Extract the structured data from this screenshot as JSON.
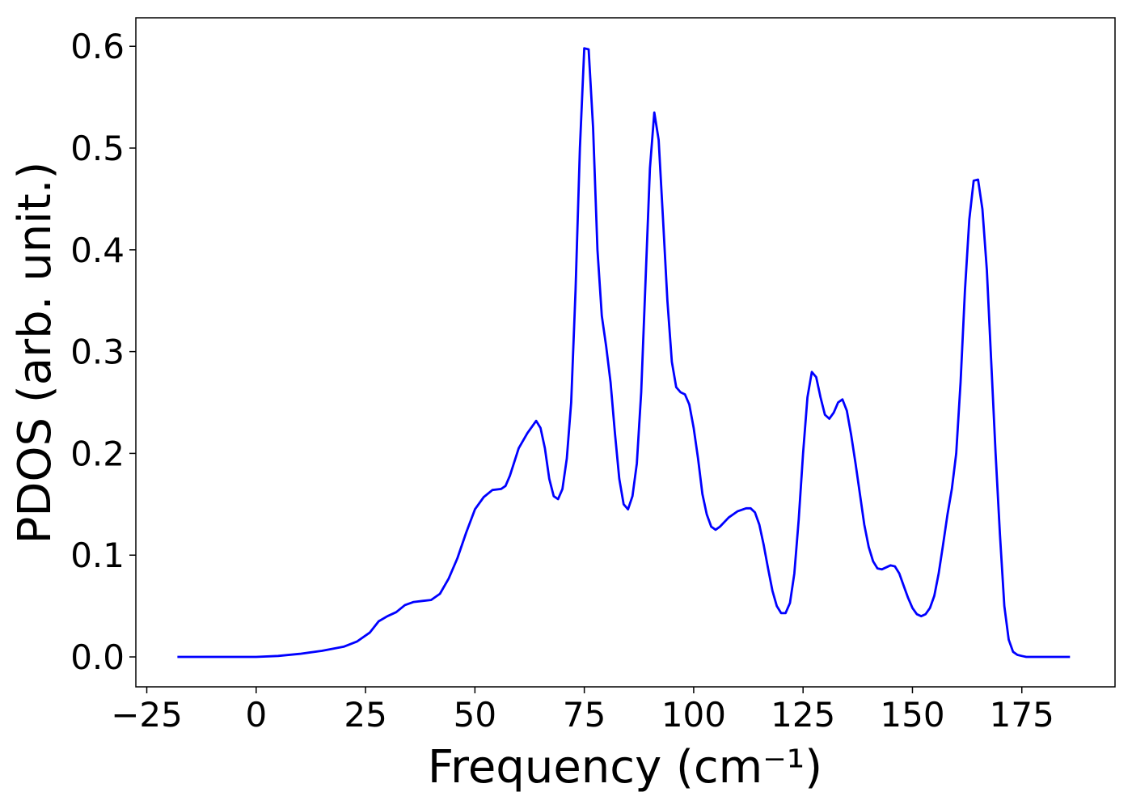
{
  "chart_data": {
    "type": "line",
    "xlabel": "Frequency (cm⁻¹)",
    "ylabel": "PDOS (arb. unit.)",
    "xlim": [
      -27.5,
      196.3
    ],
    "ylim": [
      -0.0294,
      0.628
    ],
    "xticks": [
      {
        "value": -25,
        "label": "−25"
      },
      0,
      25,
      50,
      75,
      100,
      125,
      150,
      175
    ],
    "yticks": [
      {
        "value": 0,
        "label": "0.0"
      },
      0.1,
      0.2,
      0.3,
      0.4,
      0.5,
      0.6
    ],
    "grid": false,
    "series": [
      {
        "name": "PDOS",
        "color": "#0000ff",
        "x": [
          -18,
          0,
          5,
          10,
          15,
          20,
          23,
          26,
          28,
          30,
          32,
          34,
          36,
          38,
          40,
          42,
          44,
          46,
          48,
          50,
          52,
          54,
          56,
          57,
          58,
          60,
          62,
          64,
          65,
          66,
          67,
          68,
          69,
          70,
          71,
          72,
          73,
          74,
          75,
          76,
          77,
          78,
          79,
          80,
          81,
          82,
          83,
          84,
          85,
          86,
          87,
          88,
          89,
          90,
          91,
          92,
          93,
          94,
          95,
          96,
          97,
          98,
          99,
          100,
          101,
          102,
          103,
          104,
          105,
          106,
          108,
          110,
          112,
          113,
          114,
          115,
          116,
          117,
          118,
          119,
          120,
          121,
          122,
          123,
          124,
          125,
          126,
          127,
          128,
          129,
          130,
          131,
          132,
          133,
          134,
          135,
          136,
          137,
          138,
          139,
          140,
          141,
          142,
          143,
          144,
          145,
          146,
          147,
          148,
          149,
          150,
          151,
          152,
          153,
          154,
          155,
          156,
          157,
          158,
          159,
          160,
          161,
          162,
          163,
          164,
          165,
          166,
          167,
          168,
          169,
          170,
          171,
          172,
          173,
          174,
          175,
          176,
          186
        ],
        "values": [
          0,
          0,
          0.001,
          0.003,
          0.006,
          0.01,
          0.015,
          0.024,
          0.035,
          0.04,
          0.044,
          0.051,
          0.054,
          0.055,
          0.056,
          0.062,
          0.077,
          0.097,
          0.122,
          0.145,
          0.157,
          0.164,
          0.165,
          0.168,
          0.178,
          0.205,
          0.22,
          0.232,
          0.225,
          0.205,
          0.175,
          0.158,
          0.155,
          0.165,
          0.195,
          0.25,
          0.36,
          0.5,
          0.598,
          0.597,
          0.52,
          0.4,
          0.335,
          0.305,
          0.27,
          0.22,
          0.175,
          0.15,
          0.145,
          0.158,
          0.19,
          0.26,
          0.37,
          0.48,
          0.535,
          0.508,
          0.43,
          0.35,
          0.29,
          0.265,
          0.26,
          0.258,
          0.248,
          0.225,
          0.195,
          0.16,
          0.14,
          0.128,
          0.125,
          0.128,
          0.137,
          0.143,
          0.146,
          0.146,
          0.142,
          0.13,
          0.11,
          0.087,
          0.065,
          0.05,
          0.043,
          0.043,
          0.053,
          0.082,
          0.135,
          0.2,
          0.255,
          0.28,
          0.275,
          0.255,
          0.238,
          0.234,
          0.24,
          0.25,
          0.253,
          0.242,
          0.218,
          0.19,
          0.16,
          0.13,
          0.108,
          0.094,
          0.087,
          0.086,
          0.088,
          0.09,
          0.089,
          0.082,
          0.07,
          0.058,
          0.048,
          0.042,
          0.04,
          0.042,
          0.048,
          0.06,
          0.082,
          0.11,
          0.14,
          0.165,
          0.2,
          0.27,
          0.36,
          0.43,
          0.468,
          0.469,
          0.44,
          0.38,
          0.29,
          0.2,
          0.12,
          0.05,
          0.017,
          0.005,
          0.002,
          0.001,
          0,
          0
        ]
      }
    ]
  }
}
